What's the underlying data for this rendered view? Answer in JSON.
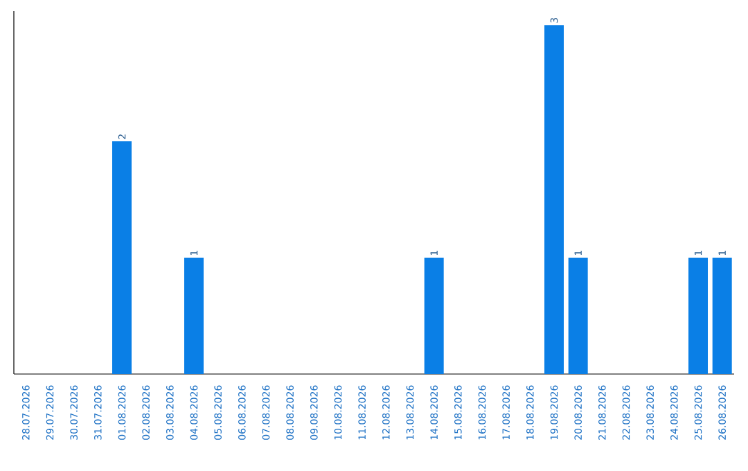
{
  "chart_data": {
    "type": "bar",
    "categories": [
      "28.07.2026",
      "29.07.2026",
      "30.07.2026",
      "31.07.2026",
      "01.08.2026",
      "02.08.2026",
      "03.08.2026",
      "04.08.2026",
      "05.08.2026",
      "06.08.2026",
      "07.08.2026",
      "08.08.2026",
      "09.08.2026",
      "10.08.2026",
      "11.08.2026",
      "12.08.2026",
      "13.08.2026",
      "14.08.2026",
      "15.08.2026",
      "16.08.2026",
      "17.08.2026",
      "18.08.2026",
      "19.08.2026",
      "20.08.2026",
      "21.08.2026",
      "22.08.2026",
      "23.08.2026",
      "24.08.2026",
      "25.08.2026",
      "26.08.2026"
    ],
    "values": [
      0,
      0,
      0,
      0,
      2,
      0,
      0,
      1,
      0,
      0,
      0,
      0,
      0,
      0,
      0,
      0,
      0,
      1,
      0,
      0,
      0,
      0,
      3,
      1,
      0,
      0,
      0,
      0,
      1,
      1
    ],
    "value_labels": [
      null,
      null,
      null,
      null,
      "2",
      null,
      null,
      "1",
      null,
      null,
      null,
      null,
      null,
      null,
      null,
      null,
      null,
      "1",
      null,
      null,
      null,
      null,
      "3",
      "1",
      null,
      null,
      null,
      null,
      "1",
      "1"
    ],
    "color": "#0a7fe6",
    "tick_labels": "x"
  }
}
